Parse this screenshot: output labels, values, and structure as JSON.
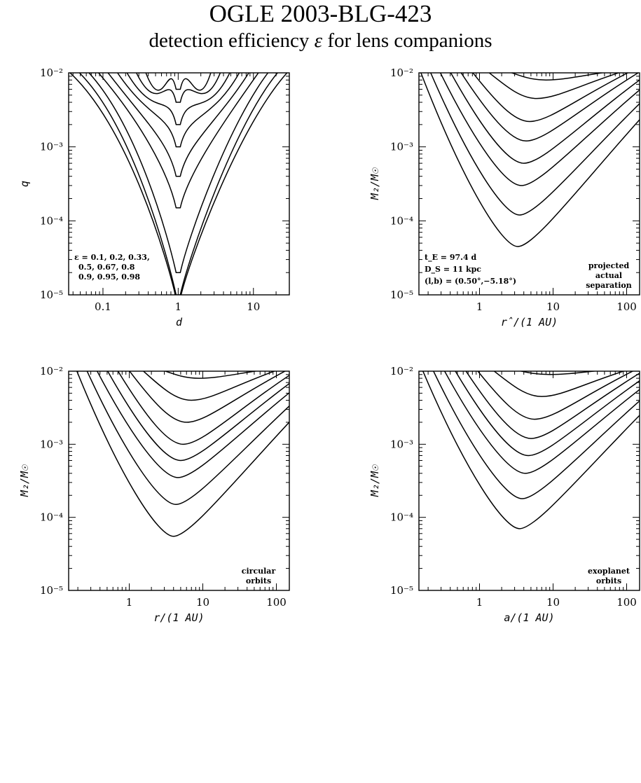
{
  "title": "OGLE 2003-BLG-423",
  "subtitle_pre": "detection efficiency ",
  "subtitle_symbol": "ε",
  "subtitle_post": " for lens companions",
  "contour_levels": [
    0.1,
    0.2,
    0.33,
    0.5,
    0.67,
    0.8,
    0.9,
    0.95,
    0.98
  ],
  "chart_data": [
    {
      "type": "contour",
      "panel": "top-left",
      "xlabel": "d",
      "ylabel": "q",
      "x_log": true,
      "y_log": true,
      "xlim": [
        0.035,
        30
      ],
      "ylim": [
        1e-05,
        0.01
      ],
      "xticklabels": [
        "0.1",
        "1",
        "10"
      ],
      "yticklabels": [
        "10⁻⁵",
        "10⁻⁴",
        "10⁻³",
        "10⁻²"
      ],
      "notes": [
        "ε = 0.1, 0.2, 0.33,",
        "0.5, 0.67, 0.8",
        "0.9, 0.95, 0.98"
      ],
      "notes_position": "bottom-left",
      "contour_minima": [
        {
          "level": 0.1,
          "x": 1.0,
          "y": 9e-06
        },
        {
          "level": 0.2,
          "x": 1.0,
          "y": 1e-05
        },
        {
          "level": 0.33,
          "x": 1.0,
          "y": 2e-05
        },
        {
          "level": 0.5,
          "x": 1.0,
          "y": 0.00015
        },
        {
          "level": 0.67,
          "x": 1.0,
          "y": 0.0004
        },
        {
          "level": 0.8,
          "x": 1.0,
          "y": 0.001
        },
        {
          "level": 0.9,
          "x": 1.0,
          "y": 0.002
        },
        {
          "level": 0.95,
          "x": 1.0,
          "y": 0.004
        },
        {
          "level": 0.98,
          "x": 1.0,
          "y": 0.006
        }
      ]
    },
    {
      "type": "contour",
      "panel": "top-right",
      "xlabel": "r̂/(1 AU)",
      "ylabel": "M₂/M☉",
      "x_log": true,
      "y_log": true,
      "xlim": [
        0.15,
        150
      ],
      "ylim": [
        1e-05,
        0.01
      ],
      "xticklabels": [
        "1",
        "10",
        "100"
      ],
      "yticklabels": [
        "10⁻⁵",
        "10⁻⁴",
        "10⁻³",
        "10⁻²"
      ],
      "notes_left": [
        "t_E = 97.4 d",
        "D_S = 11 kpc",
        "(l,b) = (0.50°,−5.18°)"
      ],
      "notes_right": [
        "projected",
        "actual",
        "separation"
      ],
      "contour_minima": [
        {
          "level": 0.1,
          "x": 3.3,
          "y": 4.5e-05
        },
        {
          "level": 0.2,
          "x": 3.5,
          "y": 0.00012
        },
        {
          "level": 0.33,
          "x": 3.7,
          "y": 0.0003
        },
        {
          "level": 0.5,
          "x": 4.0,
          "y": 0.0006
        },
        {
          "level": 0.67,
          "x": 4.3,
          "y": 0.0012
        },
        {
          "level": 0.8,
          "x": 4.8,
          "y": 0.0022
        },
        {
          "level": 0.9,
          "x": 6.0,
          "y": 0.0045
        },
        {
          "level": 0.95,
          "x": 8.0,
          "y": 0.008
        }
      ]
    },
    {
      "type": "contour",
      "panel": "bottom-left",
      "xlabel": "r/(1 AU)",
      "ylabel": "M₂/M☉",
      "x_log": true,
      "y_log": true,
      "xlim": [
        0.15,
        150
      ],
      "ylim": [
        1e-05,
        0.01
      ],
      "xticklabels": [
        "1",
        "10",
        "100"
      ],
      "yticklabels": [
        "10⁻⁵",
        "10⁻⁴",
        "10⁻³",
        "10⁻²"
      ],
      "notes_right": [
        "circular",
        "orbits"
      ],
      "contour_minima": [
        {
          "level": 0.1,
          "x": 4.0,
          "y": 5.5e-05
        },
        {
          "level": 0.2,
          "x": 4.3,
          "y": 0.00015
        },
        {
          "level": 0.33,
          "x": 4.6,
          "y": 0.00035
        },
        {
          "level": 0.5,
          "x": 5.0,
          "y": 0.0006
        },
        {
          "level": 0.67,
          "x": 5.4,
          "y": 0.001
        },
        {
          "level": 0.8,
          "x": 6.0,
          "y": 0.002
        },
        {
          "level": 0.9,
          "x": 7.0,
          "y": 0.004
        },
        {
          "level": 0.95,
          "x": 9.0,
          "y": 0.008
        }
      ]
    },
    {
      "type": "contour",
      "panel": "bottom-right",
      "xlabel": "a/(1 AU)",
      "ylabel": "M₂/M☉",
      "x_log": true,
      "y_log": true,
      "xlim": [
        0.15,
        150
      ],
      "ylim": [
        1e-05,
        0.01
      ],
      "xticklabels": [
        "1",
        "10",
        "100"
      ],
      "yticklabels": [
        "10⁻⁵",
        "10⁻⁴",
        "10⁻³",
        "10⁻²"
      ],
      "notes_right": [
        "exoplanet",
        "orbits"
      ],
      "contour_minima": [
        {
          "level": 0.1,
          "x": 3.5,
          "y": 7e-05
        },
        {
          "level": 0.2,
          "x": 3.8,
          "y": 0.00018
        },
        {
          "level": 0.33,
          "x": 4.2,
          "y": 0.0004
        },
        {
          "level": 0.5,
          "x": 4.6,
          "y": 0.0007
        },
        {
          "level": 0.67,
          "x": 5.0,
          "y": 0.0012
        },
        {
          "level": 0.8,
          "x": 5.6,
          "y": 0.0022
        },
        {
          "level": 0.9,
          "x": 7.0,
          "y": 0.0045
        },
        {
          "level": 0.95,
          "x": 9.0,
          "y": 0.009
        }
      ]
    }
  ]
}
